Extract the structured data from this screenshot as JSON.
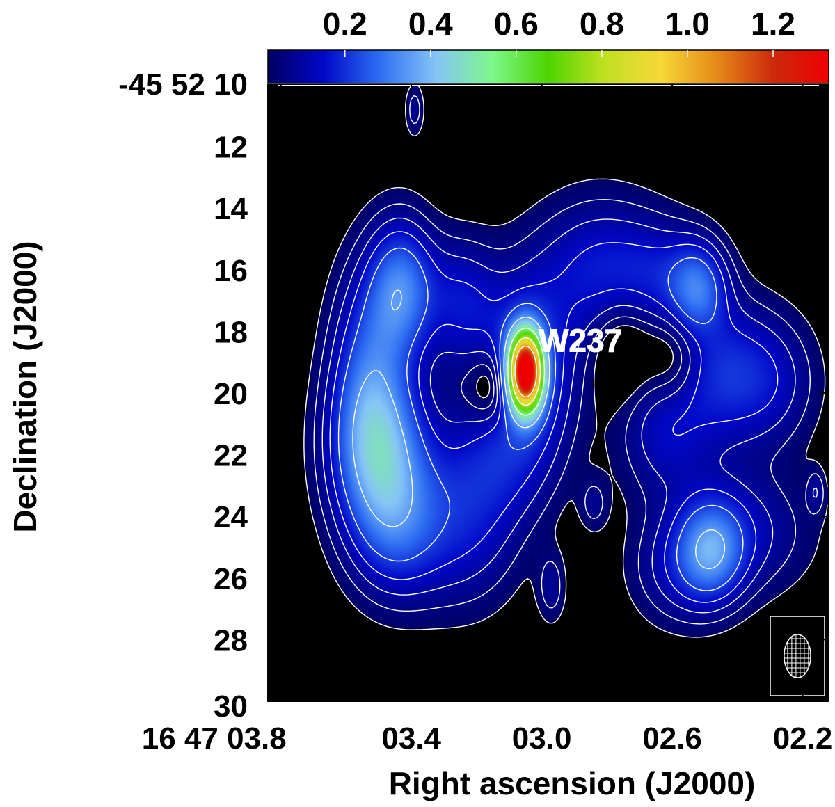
{
  "chart_data": {
    "type": "heatmap",
    "title": "",
    "xlabel": "Right ascension (J2000)",
    "ylabel": "Declination (J2000)",
    "x_tick_labels": [
      "16 47 03.8",
      "03.4",
      "03.0",
      "02.6",
      "02.2"
    ],
    "x_tick_values_sec": [
      3.8,
      3.4,
      3.0,
      2.6,
      2.2
    ],
    "xlim_sec": [
      3.84,
      2.12
    ],
    "y_tick_labels": [
      "-45 52 10",
      "12",
      "14",
      "16",
      "18",
      "20",
      "22",
      "24",
      "26",
      "28",
      "30"
    ],
    "y_tick_values_arcsec": [
      10,
      12,
      14,
      16,
      18,
      20,
      22,
      24,
      26,
      28,
      30
    ],
    "ylim_arcsec": [
      30,
      10
    ],
    "colorbar": {
      "tick_labels": [
        "0.2",
        "0.4",
        "0.6",
        "0.8",
        "1.0",
        "1.2"
      ],
      "tick_values": [
        0.2,
        0.4,
        0.6,
        0.8,
        1.0,
        1.2
      ],
      "range": [
        0.02,
        1.33
      ],
      "colors": [
        "#000060",
        "#0008c8",
        "#2e6ef2",
        "#86c4f7",
        "#7ef88c",
        "#4ed400",
        "#c0e020",
        "#f7d838",
        "#e58a18",
        "#cc2a0c",
        "#ee0000"
      ]
    },
    "grid": false,
    "annotations": [
      {
        "text": "W237",
        "ra_sec": 2.98,
        "dec_arcsec": 18.3
      }
    ],
    "emission_components": [
      {
        "ra_sec": 3.05,
        "dec_arcsec": 19.3,
        "peak": 1.3,
        "sigma_ra_sec": 0.035,
        "sigma_dec_arcsec": 0.85
      },
      {
        "ra_sec": 3.05,
        "dec_arcsec": 19.3,
        "peak": 0.25,
        "sigma_ra_sec": 0.1,
        "sigma_dec_arcsec": 2.0
      },
      {
        "ra_sec": 3.5,
        "dec_arcsec": 21.8,
        "peak": 0.34,
        "sigma_ra_sec": 0.1,
        "sigma_dec_arcsec": 1.8
      },
      {
        "ra_sec": 3.43,
        "dec_arcsec": 16.6,
        "peak": 0.28,
        "sigma_ra_sec": 0.07,
        "sigma_dec_arcsec": 1.5
      },
      {
        "ra_sec": 3.53,
        "dec_arcsec": 19.0,
        "peak": 0.2,
        "sigma_ra_sec": 0.08,
        "sigma_dec_arcsec": 2.2
      },
      {
        "ra_sec": 3.45,
        "dec_arcsec": 24.3,
        "peak": 0.2,
        "sigma_ra_sec": 0.1,
        "sigma_dec_arcsec": 1.6
      },
      {
        "ra_sec": 3.24,
        "dec_arcsec": 24.3,
        "peak": 0.14,
        "sigma_ra_sec": 0.12,
        "sigma_dec_arcsec": 1.8
      },
      {
        "ra_sec": 3.25,
        "dec_arcsec": 17.0,
        "peak": 0.14,
        "sigma_ra_sec": 0.08,
        "sigma_dec_arcsec": 1.4
      },
      {
        "ra_sec": 2.82,
        "dec_arcsec": 16.0,
        "peak": 0.16,
        "sigma_ra_sec": 0.14,
        "sigma_dec_arcsec": 1.6
      },
      {
        "ra_sec": 2.62,
        "dec_arcsec": 16.2,
        "peak": 0.1,
        "sigma_ra_sec": 0.1,
        "sigma_dec_arcsec": 1.2
      },
      {
        "ra_sec": 2.52,
        "dec_arcsec": 16.6,
        "peak": 0.22,
        "sigma_ra_sec": 0.06,
        "sigma_dec_arcsec": 1.0
      },
      {
        "ra_sec": 2.45,
        "dec_arcsec": 19.3,
        "peak": 0.15,
        "sigma_ra_sec": 0.1,
        "sigma_dec_arcsec": 1.6
      },
      {
        "ra_sec": 2.3,
        "dec_arcsec": 19.6,
        "peak": 0.12,
        "sigma_ra_sec": 0.1,
        "sigma_dec_arcsec": 1.5
      },
      {
        "ra_sec": 2.62,
        "dec_arcsec": 21.2,
        "peak": 0.13,
        "sigma_ra_sec": 0.1,
        "sigma_dec_arcsec": 1.5
      },
      {
        "ra_sec": 2.48,
        "dec_arcsec": 25.1,
        "peak": 0.25,
        "sigma_ra_sec": 0.07,
        "sigma_dec_arcsec": 1.1
      },
      {
        "ra_sec": 2.4,
        "dec_arcsec": 24.5,
        "peak": 0.12,
        "sigma_ra_sec": 0.15,
        "sigma_dec_arcsec": 1.4
      },
      {
        "ra_sec": 2.58,
        "dec_arcsec": 25.8,
        "peak": 0.1,
        "sigma_ra_sec": 0.1,
        "sigma_dec_arcsec": 1.2
      },
      {
        "ra_sec": 3.39,
        "dec_arcsec": 10.8,
        "peak": 0.08,
        "sigma_ra_sec": 0.02,
        "sigma_dec_arcsec": 0.6
      },
      {
        "ra_sec": 2.97,
        "dec_arcsec": 26.3,
        "peak": 0.08,
        "sigma_ra_sec": 0.03,
        "sigma_dec_arcsec": 0.8
      },
      {
        "ra_sec": 2.16,
        "dec_arcsec": 23.2,
        "peak": 0.08,
        "sigma_ra_sec": 0.02,
        "sigma_dec_arcsec": 0.5
      },
      {
        "ra_sec": 2.84,
        "dec_arcsec": 23.6,
        "peak": 0.07,
        "sigma_ra_sec": 0.03,
        "sigma_dec_arcsec": 0.6
      },
      {
        "ra_sec": 3.14,
        "dec_arcsec": 22.3,
        "peak": 0.1,
        "sigma_ra_sec": 0.12,
        "sigma_dec_arcsec": 1.4
      },
      {
        "ra_sec": 3.15,
        "dec_arcsec": 19.8,
        "peak": -0.15,
        "sigma_ra_sec": 0.05,
        "sigma_dec_arcsec": 0.9
      },
      {
        "ra_sec": 2.75,
        "dec_arcsec": 18.5,
        "peak": -0.08,
        "sigma_ra_sec": 0.06,
        "sigma_dec_arcsec": 1.2
      },
      {
        "ra_sec": 2.6,
        "dec_arcsec": 18.9,
        "peak": -0.08,
        "sigma_ra_sec": 0.06,
        "sigma_dec_arcsec": 1.0
      }
    ],
    "contour_levels": [
      0.03,
      0.06,
      0.1,
      0.15,
      0.22,
      0.35,
      0.55,
      0.8,
      1.05
    ],
    "beam": {
      "major_arcsec": 1.4,
      "minor_arcsec": 0.75,
      "pa_deg": 0,
      "location": "bottom-right"
    }
  }
}
